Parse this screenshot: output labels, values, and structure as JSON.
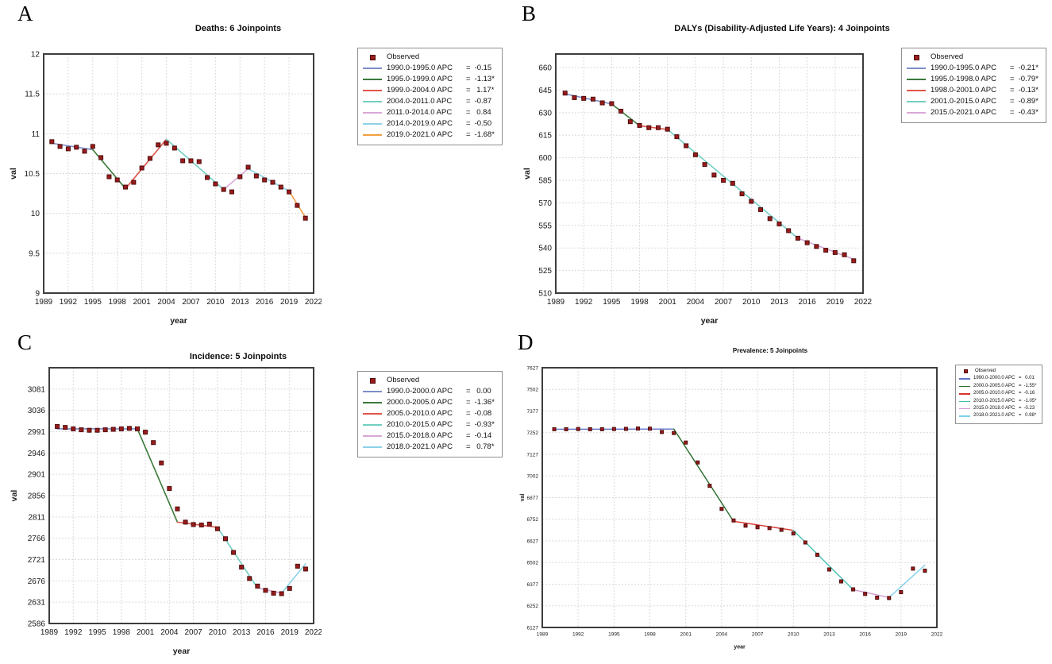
{
  "chart_data": [
    {
      "type": "line",
      "panel_label": "A",
      "title": "Deaths: 6 Joinpoints",
      "xlabel": "year",
      "ylabel": "val",
      "xlim": [
        1989,
        2022
      ],
      "ylim": [
        9,
        12
      ],
      "xticks": [
        1989,
        1992,
        1995,
        1998,
        2001,
        2004,
        2007,
        2010,
        2013,
        2016,
        2019,
        2022
      ],
      "yticks": [
        9,
        9.5,
        10,
        10.5,
        11,
        11.5,
        12
      ],
      "grid": true,
      "legend_position": "right-outside",
      "observed": {
        "label": "Observed",
        "marker": "square",
        "color": "#9b1b1b",
        "border": "#4f0c0c",
        "years": [
          1990,
          1991,
          1992,
          1993,
          1994,
          1995,
          1996,
          1997,
          1998,
          1999,
          2000,
          2001,
          2002,
          2003,
          2004,
          2005,
          2006,
          2007,
          2008,
          2009,
          2010,
          2011,
          2012,
          2013,
          2014,
          2015,
          2016,
          2017,
          2018,
          2019,
          2020,
          2021
        ],
        "values": [
          10.9,
          10.84,
          10.81,
          10.83,
          10.78,
          10.84,
          10.7,
          10.46,
          10.42,
          10.33,
          10.39,
          10.57,
          10.69,
          10.86,
          10.88,
          10.82,
          10.66,
          10.66,
          10.65,
          10.45,
          10.37,
          10.3,
          10.27,
          10.46,
          10.58,
          10.47,
          10.42,
          10.39,
          10.33,
          10.27,
          10.1,
          9.94
        ]
      },
      "segments": [
        {
          "range": "1990.0-1995.0",
          "apc": "-0.15",
          "color": "#7d8ec8",
          "x": [
            1990,
            1995
          ],
          "y": [
            10.88,
            10.8
          ]
        },
        {
          "range": "1995.0-1999.0",
          "apc": "-1.13*",
          "color": "#3a7a3a",
          "x": [
            1995,
            1999
          ],
          "y": [
            10.8,
            10.31
          ]
        },
        {
          "range": "1999.0-2004.0",
          "apc": "1.17*",
          "color": "#e0564a",
          "x": [
            1999,
            2004
          ],
          "y": [
            10.31,
            10.93
          ]
        },
        {
          "range": "2004.0-2011.0",
          "apc": "-0.87",
          "color": "#72cfc2",
          "x": [
            2004,
            2011
          ],
          "y": [
            10.93,
            10.3
          ]
        },
        {
          "range": "2011.0-2014.0",
          "apc": "0.84",
          "color": "#d8a8d6",
          "x": [
            2011,
            2014
          ],
          "y": [
            10.3,
            10.56
          ]
        },
        {
          "range": "2014.0-2019.0",
          "apc": "-0.50",
          "color": "#8ad2e6",
          "x": [
            2014,
            2019
          ],
          "y": [
            10.56,
            10.28
          ]
        },
        {
          "range": "2019.0-2021.0",
          "apc": "-1.68*",
          "color": "#f2a043",
          "x": [
            2019,
            2021
          ],
          "y": [
            10.28,
            9.95
          ]
        }
      ]
    },
    {
      "type": "line",
      "panel_label": "B",
      "title": "DALYs (Disability-Adjusted Life Years): 4 Joinpoints",
      "xlabel": "year",
      "ylabel": "val",
      "xlim": [
        1989,
        2022
      ],
      "ylim": [
        510,
        669
      ],
      "xticks": [
        1989,
        1992,
        1995,
        1998,
        2001,
        2004,
        2007,
        2010,
        2013,
        2016,
        2019,
        2022
      ],
      "yticks": [
        510,
        525,
        540,
        555,
        570,
        585,
        600,
        615,
        630,
        645,
        660
      ],
      "grid": true,
      "legend_position": "right-outside",
      "observed": {
        "label": "Observed",
        "marker": "square",
        "color": "#9b1b1b",
        "border": "#4f0c0c",
        "years": [
          1990,
          1991,
          1992,
          1993,
          1994,
          1995,
          1996,
          1997,
          1998,
          1999,
          2000,
          2001,
          2002,
          2003,
          2004,
          2005,
          2006,
          2007,
          2008,
          2009,
          2010,
          2011,
          2012,
          2013,
          2014,
          2015,
          2016,
          2017,
          2018,
          2019,
          2020,
          2021
        ],
        "values": [
          643,
          640,
          639.5,
          639,
          636.5,
          636,
          631,
          624,
          621.5,
          620,
          620,
          619,
          614,
          608,
          602,
          595.5,
          588.5,
          585,
          583,
          576,
          571,
          565.5,
          559.5,
          556,
          551.5,
          546.5,
          543.5,
          541,
          538.5,
          537,
          535.5,
          531.5
        ]
      },
      "segments": [
        {
          "range": "1990.0-1995.0",
          "apc": "-0.21*",
          "color": "#7d8ec8",
          "x": [
            1990,
            1995
          ],
          "y": [
            642.5,
            635.8
          ]
        },
        {
          "range": "1995.0-1998.0",
          "apc": "-0.79*",
          "color": "#3a7a3a",
          "x": [
            1995,
            1998
          ],
          "y": [
            635.8,
            621.3
          ]
        },
        {
          "range": "1998.0-2001.0",
          "apc": "-0.13*",
          "color": "#e0564a",
          "x": [
            1998,
            2001
          ],
          "y": [
            621.3,
            618.8
          ]
        },
        {
          "range": "2001.0-2015.0",
          "apc": "-0.89*",
          "color": "#72cfc2",
          "x": [
            2001,
            2015
          ],
          "y": [
            618.8,
            546.5
          ]
        },
        {
          "range": "2015.0-2021.0",
          "apc": "-0.43*",
          "color": "#d8a8d6",
          "x": [
            2015,
            2021
          ],
          "y": [
            546.5,
            532.5
          ]
        }
      ]
    },
    {
      "type": "line",
      "panel_label": "C",
      "title": "Incidence: 5 Joinpoints",
      "xlabel": "year",
      "ylabel": "val",
      "xlim": [
        1989,
        2022
      ],
      "ylim": [
        2586,
        3126
      ],
      "xticks": [
        1989,
        1992,
        1995,
        1998,
        2001,
        2004,
        2007,
        2010,
        2013,
        2016,
        2019,
        2022
      ],
      "yticks": [
        2586,
        2631,
        2676,
        2721,
        2766,
        2811,
        2856,
        2901,
        2946,
        2991,
        3036,
        3081
      ],
      "grid": true,
      "legend_position": "right-outside",
      "observed": {
        "label": "Observed",
        "marker": "square",
        "color": "#9b1b1b",
        "border": "#4f0c0c",
        "years": [
          1990,
          1991,
          1992,
          1993,
          1994,
          1995,
          1996,
          1997,
          1998,
          1999,
          2000,
          2001,
          2002,
          2003,
          2004,
          2005,
          2006,
          2007,
          2008,
          2009,
          2010,
          2011,
          2012,
          2013,
          2014,
          2015,
          2016,
          2017,
          2018,
          2019,
          2020,
          2021
        ],
        "values": [
          3002,
          3000,
          2997,
          2995,
          2994,
          2994,
          2995,
          2996,
          2997,
          2998,
          2997,
          2990,
          2968,
          2925,
          2871,
          2828,
          2800,
          2795,
          2794,
          2796,
          2786,
          2765,
          2736,
          2705,
          2681,
          2665,
          2656,
          2650,
          2649,
          2660,
          2707,
          2701
        ]
      },
      "segments": [
        {
          "range": "1990.0-2000.0",
          "apc": "0.00",
          "color": "#7d8ec8",
          "x": [
            1990,
            2000
          ],
          "y": [
            2997,
            2997
          ]
        },
        {
          "range": "2000.0-2005.0",
          "apc": "-1.36*",
          "color": "#3a7a3a",
          "x": [
            2000,
            2005
          ],
          "y": [
            2997,
            2800
          ]
        },
        {
          "range": "2005.0-2010.0",
          "apc": "-0.08",
          "color": "#e0564a",
          "x": [
            2005,
            2010
          ],
          "y": [
            2800,
            2789
          ]
        },
        {
          "range": "2010.0-2015.0",
          "apc": "-0.93*",
          "color": "#72cfc2",
          "x": [
            2010,
            2015
          ],
          "y": [
            2789,
            2661
          ]
        },
        {
          "range": "2015.0-2018.0",
          "apc": "-0.14",
          "color": "#d8a8d6",
          "x": [
            2015,
            2018
          ],
          "y": [
            2661,
            2650
          ]
        },
        {
          "range": "2018.0-2021.0",
          "apc": "0.78*",
          "color": "#8ad2e6",
          "x": [
            2018,
            2021
          ],
          "y": [
            2650,
            2712
          ]
        }
      ]
    },
    {
      "type": "line",
      "panel_label": "D",
      "title": "Prevalence: 5 Joinpoints",
      "xlabel": "year",
      "ylabel": "val",
      "xlim": [
        1989,
        2022
      ],
      "ylim": [
        6127,
        7627
      ],
      "xticks": [
        1989,
        1992,
        1995,
        1998,
        2001,
        2004,
        2007,
        2010,
        2013,
        2016,
        2019,
        2022
      ],
      "yticks": [
        6127,
        6252,
        6377,
        6502,
        6627,
        6752,
        6877,
        7002,
        7127,
        7252,
        7377,
        7502,
        7627
      ],
      "grid": true,
      "legend_position": "right-outside",
      "observed": {
        "label": "Observed",
        "marker": "square",
        "color": "#9b1b1b",
        "border": "#4f0c0c",
        "years": [
          1990,
          1991,
          1992,
          1993,
          1994,
          1995,
          1996,
          1997,
          1998,
          1999,
          2000,
          2001,
          2002,
          2003,
          2004,
          2005,
          2006,
          2007,
          2008,
          2009,
          2010,
          2011,
          2012,
          2013,
          2014,
          2015,
          2016,
          2017,
          2018,
          2019,
          2020,
          2021
        ],
        "values": [
          7272,
          7272,
          7273,
          7272,
          7272,
          7273,
          7274,
          7276,
          7275,
          7256,
          7250,
          7195,
          7080,
          6945,
          6812,
          6745,
          6715,
          6706,
          6701,
          6691,
          6670,
          6618,
          6547,
          6462,
          6393,
          6347,
          6321,
          6299,
          6297,
          6331,
          6467,
          6455
        ]
      },
      "segments": [
        {
          "range": "1990.0-2000.0",
          "apc": "0.01",
          "color": "#5f75c4",
          "x": [
            1990,
            2000
          ],
          "y": [
            7272,
            7273
          ]
        },
        {
          "range": "2000.0-2005.0",
          "apc": "-1.55*",
          "color": "#2a6b2a",
          "x": [
            2000,
            2005
          ],
          "y": [
            7273,
            6740
          ]
        },
        {
          "range": "2005.0-2010.0",
          "apc": "-0.16",
          "color": "#d9332a",
          "x": [
            2005,
            2010
          ],
          "y": [
            6740,
            6688
          ]
        },
        {
          "range": "2010.0-2015.0",
          "apc": "-1.05*",
          "color": "#3fbfae",
          "x": [
            2010,
            2015
          ],
          "y": [
            6688,
            6345
          ]
        },
        {
          "range": "2015.0-2018.0",
          "apc": "-0.23",
          "color": "#d49ad0",
          "x": [
            2015,
            2018
          ],
          "y": [
            6345,
            6300
          ]
        },
        {
          "range": "2018.0-2021.0",
          "apc": "0.98*",
          "color": "#7fd0ea",
          "x": [
            2018,
            2021
          ],
          "y": [
            6300,
            6487
          ]
        }
      ]
    }
  ]
}
